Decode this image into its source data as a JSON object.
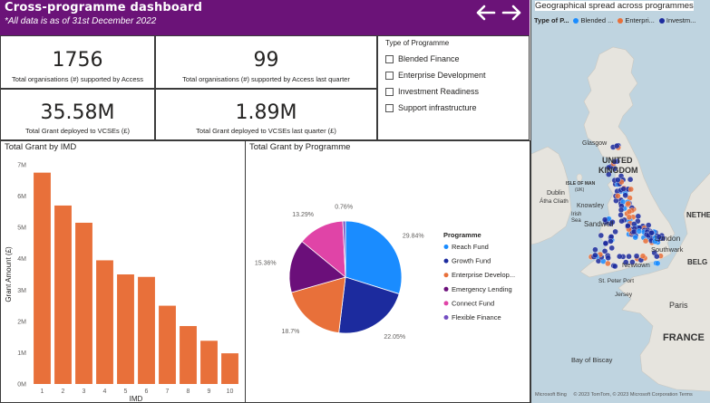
{
  "header": {
    "title": "Cross-programme dashboard",
    "subtitle": "*All data is as of 31st December 2022",
    "back_icon": "arrow-left-icon",
    "forward_icon": "arrow-right-icon",
    "background": "#6b1378"
  },
  "kpis": [
    {
      "value": "1756",
      "label": "Total organisations (#) supported by Access"
    },
    {
      "value": "99",
      "label": "Total organisations (#) supported by Access last quarter"
    },
    {
      "value": "35.58M",
      "label": "Total Grant deployed to VCSEs (£)"
    },
    {
      "value": "1.89M",
      "label": "Total Grant deployed to VCSEs last quarter (£)"
    }
  ],
  "slicer": {
    "title": "Type of Programme",
    "items": [
      "Blended Finance",
      "Enterprise Development",
      "Investment Readiness",
      "Support infrastructure"
    ]
  },
  "bar_chart": {
    "title": "Total Grant by IMD",
    "chart_data": {
      "type": "bar",
      "title": "Total Grant by IMD",
      "xlabel": "IMD",
      "ylabel": "Grant Amount (£)",
      "categories": [
        "1",
        "2",
        "3",
        "4",
        "5",
        "6",
        "7",
        "8",
        "9",
        "10"
      ],
      "values": [
        6.75,
        5.7,
        5.15,
        3.95,
        3.5,
        3.42,
        2.5,
        1.85,
        1.38,
        0.98
      ],
      "value_unit": "M",
      "ylim": [
        0,
        7
      ],
      "yticks": [
        "0M",
        "1M",
        "2M",
        "3M",
        "4M",
        "5M",
        "6M",
        "7M"
      ],
      "color": "#e8703a",
      "grid": false
    }
  },
  "pie_chart": {
    "title": "Total Grant by Programme",
    "legend_title": "Programme",
    "chart_data": {
      "type": "pie",
      "title": "Total Grant by Programme",
      "slices": [
        {
          "name": "Reach Fund",
          "value": 29.84,
          "label": "29.84%",
          "color": "#1a8cff"
        },
        {
          "name": "Growth Fund",
          "value": 22.05,
          "label": "22.05%",
          "color": "#1c2b9e"
        },
        {
          "name": "Enterprise Develop...",
          "value": 18.7,
          "label": "18.7%",
          "color": "#e8703a"
        },
        {
          "name": "Emergency Lending",
          "value": 15.36,
          "label": "15.36%",
          "color": "#6b0f7a"
        },
        {
          "name": "Connect Fund",
          "value": 13.29,
          "label": "13.29%",
          "color": "#e044a7"
        },
        {
          "name": "Flexible Finance",
          "value": 0.76,
          "label": "0.76%",
          "color": "#744ec2"
        }
      ],
      "legend_position": "right"
    }
  },
  "map": {
    "title": "Geographical spread across programmes",
    "legend_label": "Type of P...",
    "legend_items": [
      {
        "name": "Blended ...",
        "color": "#1a8cff"
      },
      {
        "name": "Enterpri...",
        "color": "#e8703a"
      },
      {
        "name": "Investm...",
        "color": "#1c2b9e"
      }
    ],
    "labels": {
      "glasgow": "Glasgow",
      "uk1": "UNITED",
      "uk2": "KINGDOM",
      "isle1": "ISLE OF MAN",
      "isle2": "(UK)",
      "dublin1": "Dublin",
      "dublin2": "Átha Cliath",
      "knowsley": "Knowsley",
      "irish1": "Irish",
      "irish2": "Sea",
      "sandwell": "Sandwell",
      "nethe": "NETHE",
      "london": "London",
      "southwark": "Southwark",
      "newtown": "Newtown",
      "belg": "BELG",
      "peterport": "St. Peter Port",
      "jersey": "Jersey",
      "paris": "Paris",
      "france": "FRANCE",
      "biscay": "Bay of Biscay"
    },
    "credit": "© 2023 TomTom, © 2023 Microsoft Corporation  Terms",
    "bing": "Microsoft Bing"
  }
}
